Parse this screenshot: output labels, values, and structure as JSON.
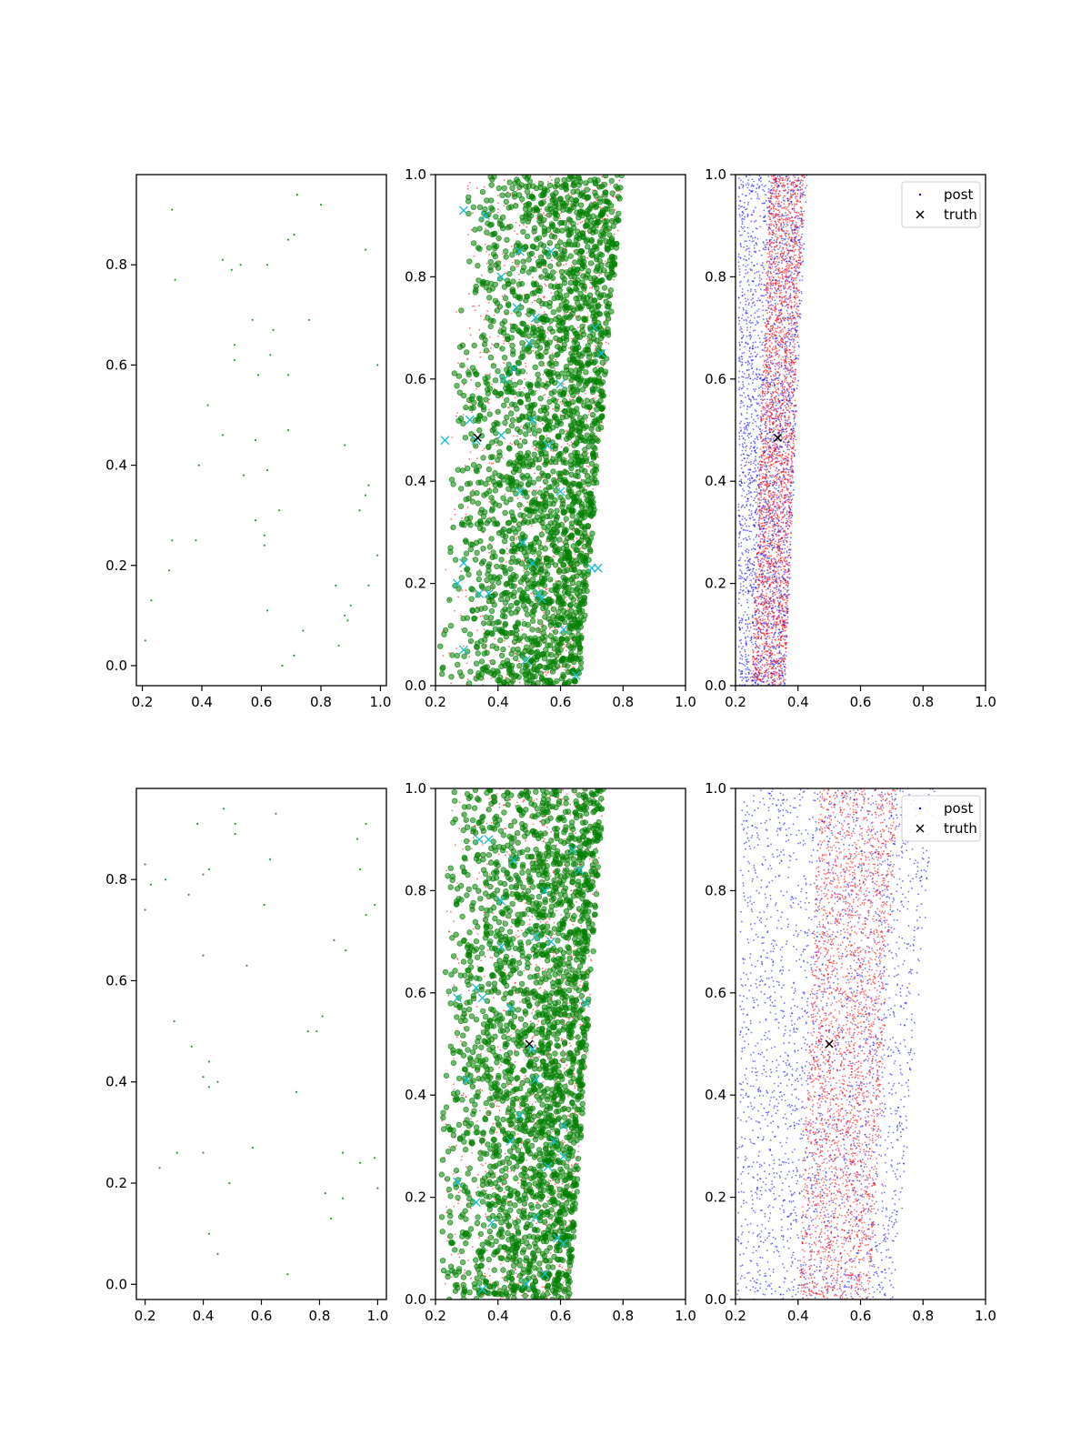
{
  "figure": {
    "rows": 2,
    "cols": 3
  },
  "colors": {
    "green": "#008000",
    "red": "#ff0000",
    "blue": "#0000ff",
    "cyan": "#17becf",
    "black": "#000000"
  },
  "legend": {
    "post_label": "post",
    "truth_label": "truth",
    "placement": "upper right"
  },
  "chart_data": [
    {
      "type": "scatter",
      "panel": "row1-col1",
      "xlim": [
        0.18,
        1.02
      ],
      "ylim": [
        -0.04,
        0.98
      ],
      "xticks": [
        0.2,
        0.4,
        0.6,
        0.8,
        1.0
      ],
      "xtick_labels": [
        "0.2",
        "0.4",
        "0.6",
        "0.8",
        "1.0"
      ],
      "yticks": [
        0.0,
        0.2,
        0.4,
        0.6,
        0.8
      ],
      "ytick_labels": [
        "0.0",
        "0.2",
        "0.4",
        "0.6",
        "0.8"
      ],
      "series": [
        {
          "color": "green",
          "marker": "dot-small",
          "points": [
            [
              0.3,
              0.91
            ],
            [
              0.72,
              0.94
            ],
            [
              0.8,
              0.92
            ],
            [
              0.31,
              0.77
            ],
            [
              0.47,
              0.81
            ],
            [
              0.5,
              0.79
            ],
            [
              0.53,
              0.8
            ],
            [
              0.62,
              0.8
            ],
            [
              0.69,
              0.85
            ],
            [
              0.71,
              0.86
            ],
            [
              0.95,
              0.83
            ],
            [
              0.57,
              0.69
            ],
            [
              0.64,
              0.67
            ],
            [
              0.76,
              0.69
            ],
            [
              0.51,
              0.64
            ],
            [
              0.51,
              0.61
            ],
            [
              0.63,
              0.62
            ],
            [
              0.59,
              0.58
            ],
            [
              0.69,
              0.58
            ],
            [
              0.99,
              0.6
            ],
            [
              0.42,
              0.52
            ],
            [
              0.47,
              0.46
            ],
            [
              0.58,
              0.45
            ],
            [
              0.69,
              0.47
            ],
            [
              0.88,
              0.44
            ],
            [
              0.39,
              0.4
            ],
            [
              0.54,
              0.38
            ],
            [
              0.62,
              0.39
            ],
            [
              0.96,
              0.36
            ],
            [
              0.95,
              0.34
            ],
            [
              0.66,
              0.31
            ],
            [
              0.3,
              0.25
            ],
            [
              0.38,
              0.25
            ],
            [
              0.58,
              0.29
            ],
            [
              0.61,
              0.26
            ],
            [
              0.61,
              0.24
            ],
            [
              0.93,
              0.31
            ],
            [
              0.99,
              0.22
            ],
            [
              0.29,
              0.19
            ],
            [
              0.23,
              0.13
            ],
            [
              0.62,
              0.11
            ],
            [
              0.85,
              0.16
            ],
            [
              0.96,
              0.16
            ],
            [
              0.9,
              0.12
            ],
            [
              0.88,
              0.1
            ],
            [
              0.89,
              0.09
            ],
            [
              0.21,
              0.05
            ],
            [
              0.67,
              0.0
            ],
            [
              0.71,
              0.02
            ],
            [
              0.74,
              0.07
            ],
            [
              0.86,
              0.04
            ]
          ]
        }
      ]
    },
    {
      "type": "scatter",
      "panel": "row1-col2",
      "xlim": [
        0.2,
        1.0
      ],
      "ylim": [
        0.0,
        1.0
      ],
      "xticks": [
        0.2,
        0.4,
        0.6,
        0.8,
        1.0
      ],
      "xtick_labels": [
        "0.2",
        "0.4",
        "0.6",
        "0.8",
        "1.0"
      ],
      "yticks": [
        0.0,
        0.2,
        0.4,
        0.6,
        0.8,
        1.0
      ],
      "ytick_labels": [
        "0.0",
        "0.2",
        "0.4",
        "0.6",
        "0.8",
        "1.0"
      ],
      "cloud": {
        "left_start": 0.2,
        "left_end": 0.28,
        "right_start": 0.66,
        "right_end": 0.8,
        "bias": 0.55
      },
      "series": [
        {
          "color": "red",
          "marker": "dot-tiny",
          "count": 1400
        },
        {
          "color": "green",
          "marker": "circle-large",
          "count": 2400
        },
        {
          "color": "cyan",
          "marker": "x",
          "points": [
            [
              0.29,
              0.93
            ],
            [
              0.36,
              0.92
            ],
            [
              0.47,
              0.85
            ],
            [
              0.41,
              0.8
            ],
            [
              0.57,
              0.85
            ],
            [
              0.46,
              0.74
            ],
            [
              0.52,
              0.72
            ],
            [
              0.5,
              0.67
            ],
            [
              0.45,
              0.62
            ],
            [
              0.42,
              0.6
            ],
            [
              0.6,
              0.59
            ],
            [
              0.71,
              0.7
            ],
            [
              0.73,
              0.65
            ],
            [
              0.51,
              0.52
            ],
            [
              0.33,
              0.48
            ],
            [
              0.23,
              0.48
            ],
            [
              0.31,
              0.52
            ],
            [
              0.41,
              0.49
            ],
            [
              0.56,
              0.47
            ],
            [
              0.47,
              0.38
            ],
            [
              0.6,
              0.38
            ],
            [
              0.48,
              0.28
            ],
            [
              0.51,
              0.24
            ],
            [
              0.29,
              0.24
            ],
            [
              0.27,
              0.2
            ],
            [
              0.34,
              0.18
            ],
            [
              0.37,
              0.18
            ],
            [
              0.53,
              0.18
            ],
            [
              0.54,
              0.17
            ],
            [
              0.72,
              0.23
            ],
            [
              0.7,
              0.23
            ],
            [
              0.61,
              0.11
            ],
            [
              0.29,
              0.07
            ],
            [
              0.49,
              0.05
            ],
            [
              0.65,
              0.02
            ]
          ]
        },
        {
          "color": "black",
          "marker": "x",
          "points": [
            [
              0.335,
              0.485
            ]
          ]
        }
      ]
    },
    {
      "type": "scatter",
      "panel": "row1-col3",
      "xlim": [
        0.2,
        1.0
      ],
      "ylim": [
        0.0,
        1.0
      ],
      "xticks": [
        0.2,
        0.4,
        0.6,
        0.8,
        1.0
      ],
      "xtick_labels": [
        "0.2",
        "0.4",
        "0.6",
        "0.8",
        "1.0"
      ],
      "yticks": [
        0.0,
        0.2,
        0.4,
        0.6,
        0.8,
        1.0
      ],
      "ytick_labels": [
        "0.0",
        "0.2",
        "0.4",
        "0.6",
        "0.8",
        "1.0"
      ],
      "series": [
        {
          "name": "post",
          "color": "blue",
          "marker": "dot-tiny",
          "count": 2600,
          "band": {
            "left_start": 0.21,
            "left_end": 0.21,
            "right_start": 0.36,
            "right_end": 0.43
          }
        },
        {
          "color": "red",
          "marker": "dot-tiny",
          "count": 2600,
          "band": {
            "left_start": 0.25,
            "left_end": 0.31,
            "right_start": 0.36,
            "right_end": 0.42
          }
        },
        {
          "name": "truth",
          "color": "black",
          "marker": "x",
          "points": [
            [
              0.335,
              0.485
            ]
          ]
        }
      ]
    },
    {
      "type": "scatter",
      "panel": "row2-col1",
      "xlim": [
        0.17,
        1.03
      ],
      "ylim": [
        -0.03,
        0.98
      ],
      "xticks": [
        0.2,
        0.4,
        0.6,
        0.8,
        1.0
      ],
      "xtick_labels": [
        "0.2",
        "0.4",
        "0.6",
        "0.8",
        "1.0"
      ],
      "yticks": [
        0.0,
        0.2,
        0.4,
        0.6,
        0.8
      ],
      "ytick_labels": [
        "0.0",
        "0.2",
        "0.4",
        "0.6",
        "0.8"
      ],
      "series": [
        {
          "color": "green",
          "marker": "dot-small",
          "points": [
            [
              0.47,
              0.94
            ],
            [
              0.65,
              0.93
            ],
            [
              0.38,
              0.91
            ],
            [
              0.51,
              0.91
            ],
            [
              0.51,
              0.89
            ],
            [
              0.96,
              0.91
            ],
            [
              0.93,
              0.88
            ],
            [
              0.2,
              0.83
            ],
            [
              0.22,
              0.79
            ],
            [
              0.27,
              0.8
            ],
            [
              0.4,
              0.81
            ],
            [
              0.42,
              0.82
            ],
            [
              0.63,
              0.84
            ],
            [
              0.94,
              0.82
            ],
            [
              0.35,
              0.77
            ],
            [
              0.61,
              0.75
            ],
            [
              0.2,
              0.74
            ],
            [
              0.96,
              0.73
            ],
            [
              0.99,
              0.75
            ],
            [
              0.85,
              0.68
            ],
            [
              0.89,
              0.66
            ],
            [
              0.4,
              0.65
            ],
            [
              0.55,
              0.63
            ],
            [
              0.3,
              0.52
            ],
            [
              0.36,
              0.47
            ],
            [
              0.42,
              0.44
            ],
            [
              0.81,
              0.53
            ],
            [
              0.76,
              0.5
            ],
            [
              0.79,
              0.5
            ],
            [
              0.4,
              0.41
            ],
            [
              0.42,
              0.39
            ],
            [
              0.45,
              0.4
            ],
            [
              0.72,
              0.38
            ],
            [
              0.4,
              0.26
            ],
            [
              0.31,
              0.26
            ],
            [
              0.25,
              0.23
            ],
            [
              0.57,
              0.27
            ],
            [
              0.88,
              0.26
            ],
            [
              0.94,
              0.24
            ],
            [
              0.99,
              0.25
            ],
            [
              0.49,
              0.2
            ],
            [
              0.82,
              0.18
            ],
            [
              0.88,
              0.17
            ],
            [
              1.0,
              0.19
            ],
            [
              0.84,
              0.13
            ],
            [
              0.42,
              0.1
            ],
            [
              0.45,
              0.06
            ],
            [
              0.69,
              0.02
            ]
          ]
        }
      ]
    },
    {
      "type": "scatter",
      "panel": "row2-col2",
      "xlim": [
        0.2,
        1.0
      ],
      "ylim": [
        0.0,
        1.0
      ],
      "xticks": [
        0.2,
        0.4,
        0.6,
        0.8,
        1.0
      ],
      "xtick_labels": [
        "0.2",
        "0.4",
        "0.6",
        "0.8",
        "1.0"
      ],
      "yticks": [
        0.0,
        0.2,
        0.4,
        0.6,
        0.8,
        1.0
      ],
      "ytick_labels": [
        "0.0",
        "0.2",
        "0.4",
        "0.6",
        "0.8",
        "1.0"
      ],
      "cloud": {
        "left_start": 0.2,
        "left_end": 0.24,
        "right_start": 0.63,
        "right_end": 0.74,
        "bias": 0.6
      },
      "series": [
        {
          "color": "red",
          "marker": "dot-tiny",
          "count": 1400
        },
        {
          "color": "green",
          "marker": "circle-large",
          "count": 2400
        },
        {
          "color": "cyan",
          "marker": "x",
          "points": [
            [
              0.34,
              0.9
            ],
            [
              0.37,
              0.9
            ],
            [
              0.45,
              0.86
            ],
            [
              0.64,
              0.88
            ],
            [
              0.41,
              0.78
            ],
            [
              0.55,
              0.8
            ],
            [
              0.66,
              0.84
            ],
            [
              0.41,
              0.69
            ],
            [
              0.52,
              0.71
            ],
            [
              0.57,
              0.7
            ],
            [
              0.33,
              0.61
            ],
            [
              0.35,
              0.59
            ],
            [
              0.27,
              0.59
            ],
            [
              0.44,
              0.57
            ],
            [
              0.51,
              0.49
            ],
            [
              0.68,
              0.58
            ],
            [
              0.3,
              0.43
            ],
            [
              0.52,
              0.43
            ],
            [
              0.47,
              0.36
            ],
            [
              0.61,
              0.34
            ],
            [
              0.44,
              0.31
            ],
            [
              0.58,
              0.31
            ],
            [
              0.61,
              0.28
            ],
            [
              0.56,
              0.26
            ],
            [
              0.27,
              0.23
            ],
            [
              0.33,
              0.19
            ],
            [
              0.38,
              0.15
            ],
            [
              0.52,
              0.16
            ],
            [
              0.59,
              0.12
            ],
            [
              0.61,
              0.11
            ],
            [
              0.55,
              0.05
            ],
            [
              0.49,
              0.03
            ],
            [
              0.35,
              0.02
            ]
          ]
        },
        {
          "color": "black",
          "marker": "x",
          "points": [
            [
              0.5,
              0.5
            ]
          ]
        }
      ]
    },
    {
      "type": "scatter",
      "panel": "row2-col3",
      "xlim": [
        0.2,
        1.0
      ],
      "ylim": [
        0.0,
        1.0
      ],
      "xticks": [
        0.2,
        0.4,
        0.6,
        0.8,
        1.0
      ],
      "xtick_labels": [
        "0.2",
        "0.4",
        "0.6",
        "0.8",
        "1.0"
      ],
      "yticks": [
        0.0,
        0.2,
        0.4,
        0.6,
        0.8,
        1.0
      ],
      "ytick_labels": [
        "0.0",
        "0.2",
        "0.4",
        "0.6",
        "0.8",
        "1.0"
      ],
      "series": [
        {
          "name": "post",
          "color": "blue",
          "marker": "dot-tiny",
          "count": 2600,
          "band": {
            "left_start": 0.2,
            "left_end": 0.22,
            "right_start": 0.71,
            "right_end": 0.84
          }
        },
        {
          "color": "red",
          "marker": "dot-tiny",
          "count": 2600,
          "band": {
            "left_start": 0.4,
            "left_end": 0.47,
            "right_start": 0.63,
            "right_end": 0.72
          }
        },
        {
          "name": "truth",
          "color": "black",
          "marker": "x",
          "points": [
            [
              0.5,
              0.5
            ]
          ]
        }
      ]
    }
  ]
}
